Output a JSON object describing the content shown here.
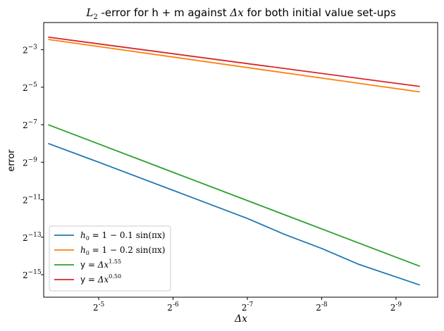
{
  "chart_data": {
    "type": "line",
    "title_pre": "L",
    "title_sub": "2",
    "title_mid": " -error for h + m against ",
    "title_var": "Δx",
    "title_post": " for both initial value set-ups",
    "xlabel": "Δx",
    "ylabel": "error",
    "x_scale": "log2",
    "y_scale": "log2",
    "x_reversed": true,
    "xlim_exp": [
      -4.26,
      -9.56
    ],
    "ylim_exp": [
      -16.2,
      -1.55
    ],
    "x_tick_exps": [
      -5,
      -6,
      -7,
      -8,
      -9
    ],
    "x_tick_labels": [
      "-5",
      "-6",
      "-7",
      "-8",
      "-9"
    ],
    "y_tick_exps": [
      -3,
      -5,
      -7,
      -9,
      -11,
      -13,
      -15
    ],
    "y_tick_labels": [
      "-3",
      "-5",
      "-7",
      "-9",
      "-11",
      "-13",
      "-15"
    ],
    "grid": false,
    "legend_position": "lower-left",
    "series": [
      {
        "legend_math": "h",
        "legend_sub": "0",
        "legend_rest": " = 1 − 0.1 sin(πx)",
        "color": "#1f77b4",
        "x_exp": [
          -4.32,
          -5.0,
          -6.0,
          -7.0,
          -7.5,
          -8.0,
          -8.5,
          -9.32
        ],
        "y_exp": [
          -8.0,
          -9.0,
          -10.5,
          -12.0,
          -12.85,
          -13.6,
          -14.45,
          -15.55
        ]
      },
      {
        "legend_math": "h",
        "legend_sub": "0",
        "legend_rest": " = 1 − 0.2 sin(πx)",
        "color": "#ff7f0e",
        "x_exp": [
          -4.32,
          -9.32
        ],
        "y_exp": [
          -2.45,
          -5.25
        ]
      },
      {
        "legend_pre": "y = ",
        "legend_math": "Δx",
        "legend_sup": "1.55",
        "color": "#2ca02c",
        "x_exp": [
          -4.32,
          -9.32
        ],
        "y_exp": [
          -7.0,
          -14.55
        ]
      },
      {
        "legend_pre": "y = ",
        "legend_math": "Δx",
        "legend_sup": "0.50",
        "color": "#d62728",
        "x_exp": [
          -4.32,
          -9.32
        ],
        "y_exp": [
          -2.33,
          -4.96
        ]
      }
    ]
  }
}
